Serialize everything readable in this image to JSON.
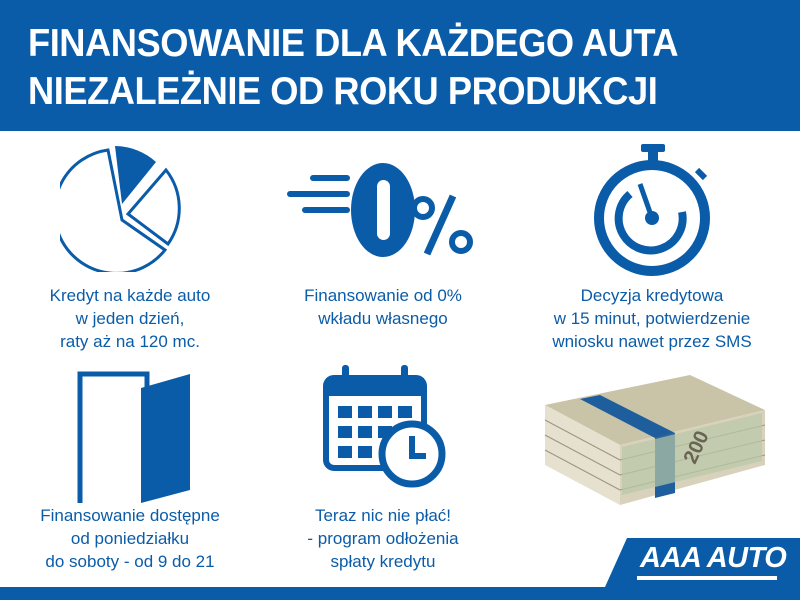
{
  "header": {
    "title_line1": "FINANSOWANIE DLA KAŻDEGO AUTA",
    "title_line2": "NIEZALEŻNIE OD ROKU PRODUKCJI"
  },
  "features": [
    {
      "icon": "pie-chart-icon",
      "lines": [
        "Kredyt na każde auto",
        "w jeden dzień,",
        "raty aż na 120 mc."
      ]
    },
    {
      "icon": "zero-percent-icon",
      "lines": [
        "Finansowanie od 0%",
        "wkładu własnego"
      ]
    },
    {
      "icon": "stopwatch-icon",
      "lines": [
        "Decyzja kredytowa",
        "w 15 minut, potwierdzenie",
        "wniosku nawet przez SMS"
      ]
    },
    {
      "icon": "open-door-icon",
      "lines": [
        "Finansowanie dostępne",
        "od poniedziałku",
        "do soboty - od 9 do 21"
      ]
    },
    {
      "icon": "calendar-clock-icon",
      "lines": [
        "Teraz nic nie płać!",
        "- program odłożenia",
        "spłaty kredytu"
      ]
    }
  ],
  "money_image": {
    "icon": "banknotes-icon",
    "denomination": "200"
  },
  "logo": {
    "text": "AAA AUTO"
  },
  "colors": {
    "brand_blue": "#0b5ca8",
    "background": "#ffffff"
  }
}
